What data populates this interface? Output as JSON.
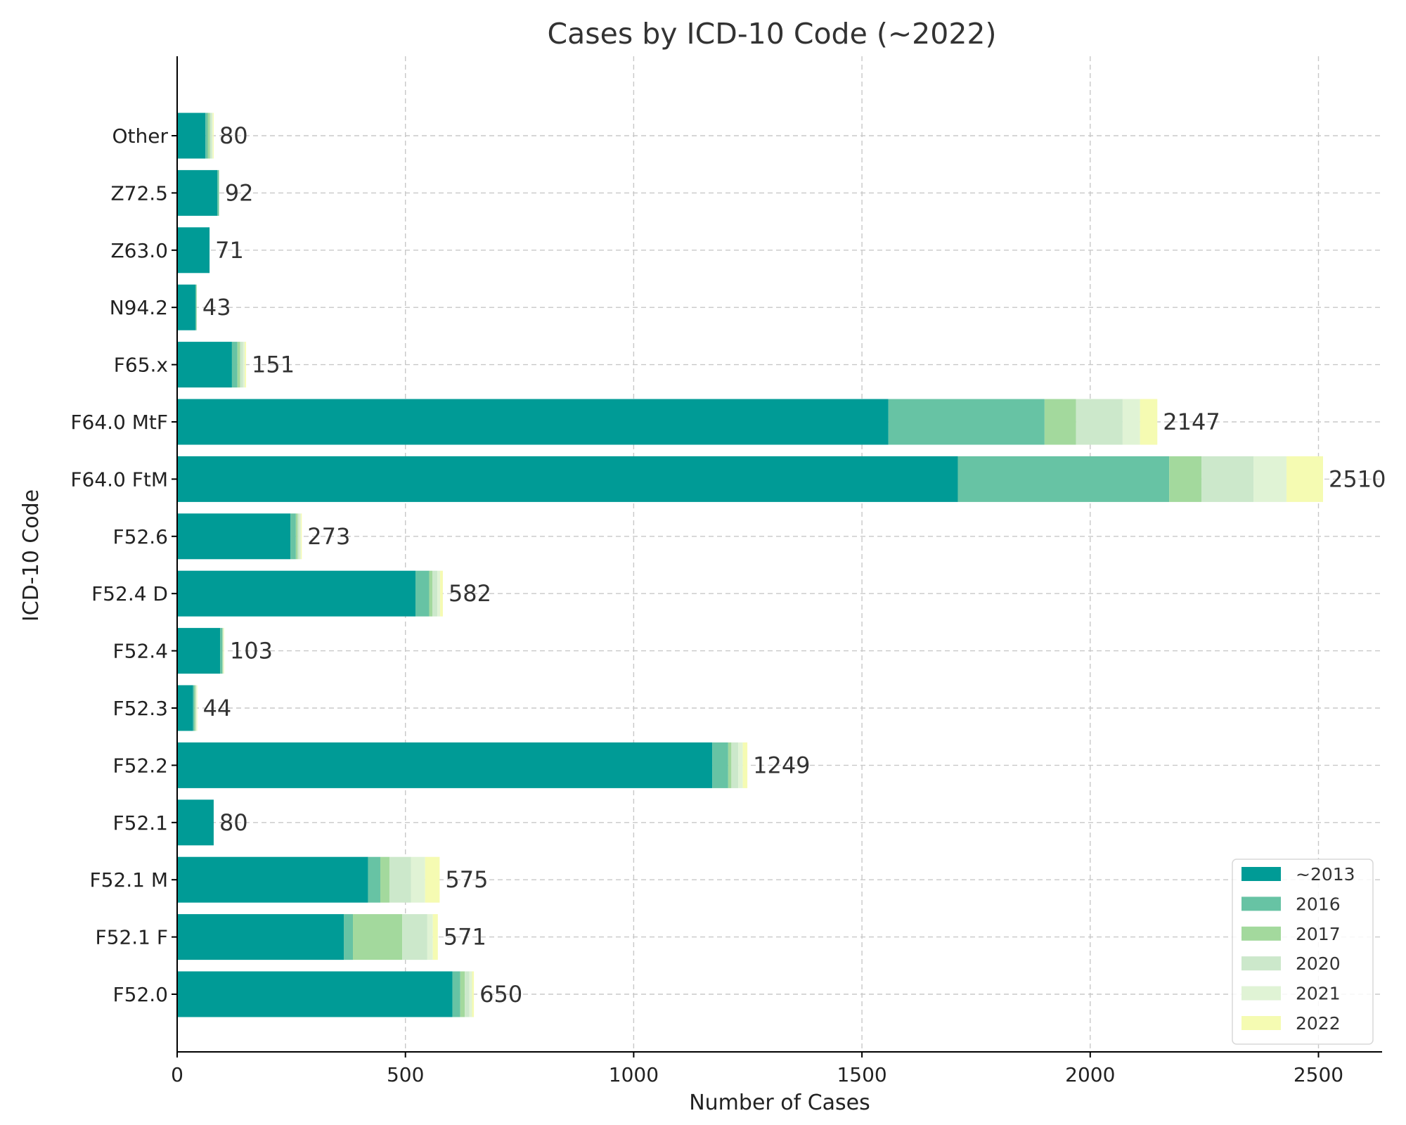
{
  "chart_data": {
    "type": "bar",
    "orientation": "horizontal",
    "stacked": true,
    "title": "Cases by ICD-10 Code (~2022)",
    "xlabel": "Number of Cases",
    "ylabel": "ICD-10 Code",
    "xlim": [
      0,
      2640
    ],
    "xticks": [
      0,
      500,
      1000,
      1500,
      2000,
      2500
    ],
    "grid": true,
    "legend_position": "lower-right",
    "categories": [
      "F52.0",
      "F52.1 F",
      "F52.1 M",
      "F52.1",
      "F52.2",
      "F52.3",
      "F52.4",
      "F52.4 D",
      "F52.6",
      "F64.0 FtM",
      "F64.0 MtF",
      "F65.x",
      "N94.2",
      "Z63.0",
      "Z72.5",
      "Other"
    ],
    "series": [
      {
        "name": "~2013",
        "color": "#009b96",
        "values": [
          603,
          365,
          418,
          80,
          1172,
          35,
          94,
          522,
          248,
          1710,
          1558,
          120,
          40,
          71,
          88,
          62
        ]
      },
      {
        "name": "2016",
        "color": "#67c3a4",
        "values": [
          17,
          20,
          27,
          0,
          35,
          3,
          5,
          30,
          12,
          463,
          342,
          12,
          2,
          0,
          3,
          5
        ]
      },
      {
        "name": "2017",
        "color": "#a3d99d",
        "values": [
          10,
          108,
          20,
          0,
          7,
          2,
          1,
          7,
          4,
          71,
          69,
          6,
          1,
          0,
          1,
          5
        ]
      },
      {
        "name": "2020",
        "color": "#cce8cb",
        "values": [
          10,
          55,
          47,
          0,
          15,
          2,
          1,
          11,
          4,
          114,
          102,
          6,
          0,
          0,
          0,
          4
        ]
      },
      {
        "name": "2021",
        "color": "#e0f3d5",
        "values": [
          6,
          12,
          31,
          0,
          10,
          1,
          1,
          6,
          3,
          72,
          38,
          4,
          0,
          0,
          0,
          2
        ]
      },
      {
        "name": "2022",
        "color": "#f5fbb2",
        "values": [
          4,
          11,
          32,
          0,
          10,
          1,
          1,
          6,
          2,
          80,
          38,
          3,
          0,
          0,
          0,
          2
        ]
      }
    ],
    "totals": [
      650,
      571,
      575,
      80,
      1249,
      44,
      103,
      582,
      273,
      2510,
      2147,
      151,
      43,
      71,
      92,
      80
    ]
  }
}
